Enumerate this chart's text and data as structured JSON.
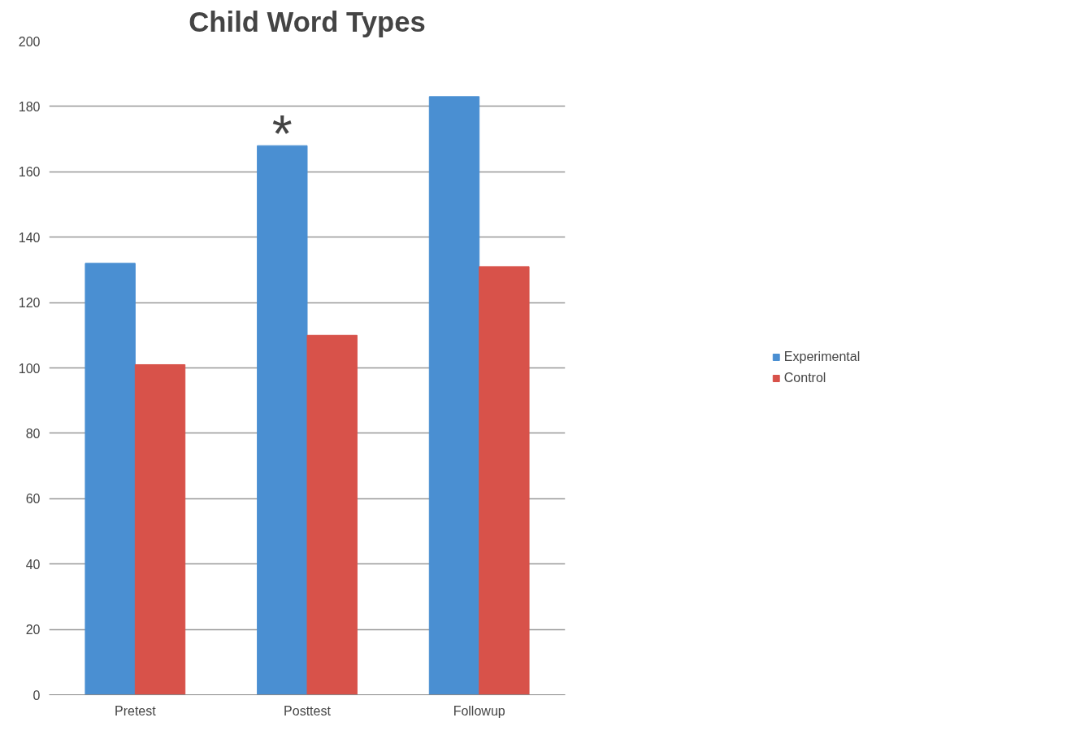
{
  "chart_data": {
    "type": "bar",
    "title": "Child Word Types",
    "categories": [
      "Pretest",
      "Posttest",
      "Followup"
    ],
    "series": [
      {
        "name": "Experimental",
        "color": "#4a8fd2",
        "values": [
          132,
          168,
          183
        ]
      },
      {
        "name": "Control",
        "color": "#d8524a",
        "values": [
          101,
          110,
          131
        ]
      }
    ],
    "ylim": [
      0,
      200
    ],
    "yticks": [
      0,
      20,
      40,
      60,
      80,
      100,
      120,
      140,
      160,
      180,
      200
    ],
    "grid": "y",
    "legend": "right",
    "annotations": [
      {
        "text": "*",
        "x": "Posttest",
        "y": 168
      }
    ]
  }
}
